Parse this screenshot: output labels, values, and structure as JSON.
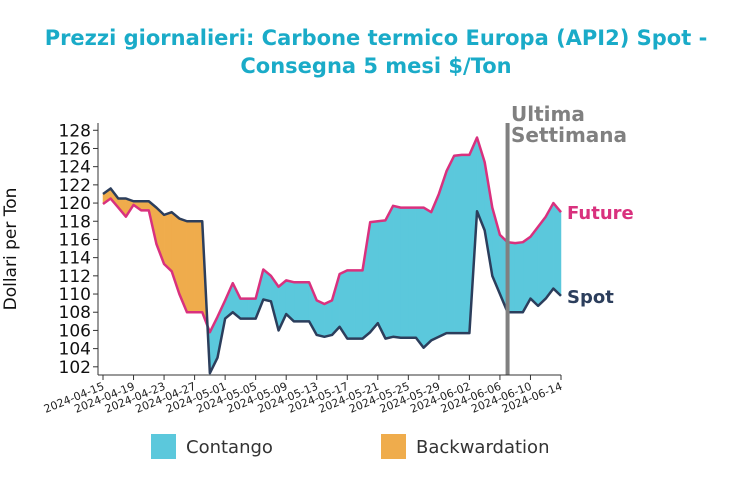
{
  "chart_data": {
    "type": "line",
    "title": "Prezzi giornalieri: Carbone termico Europa (API2) Spot - Consegna 5 mesi $/Ton",
    "y_label": "Dollari per Ton",
    "x": [
      "2024-04-15",
      "2024-04-16",
      "2024-04-17",
      "2024-04-18",
      "2024-04-19",
      "2024-04-20",
      "2024-04-21",
      "2024-04-22",
      "2024-04-23",
      "2024-04-24",
      "2024-04-25",
      "2024-04-26",
      "2024-04-27",
      "2024-04-28",
      "2024-04-29",
      "2024-04-30",
      "2024-05-01",
      "2024-05-02",
      "2024-05-03",
      "2024-05-04",
      "2024-05-05",
      "2024-05-06",
      "2024-05-07",
      "2024-05-08",
      "2024-05-09",
      "2024-05-10",
      "2024-05-11",
      "2024-05-12",
      "2024-05-13",
      "2024-05-14",
      "2024-05-15",
      "2024-05-16",
      "2024-05-17",
      "2024-05-18",
      "2024-05-19",
      "2024-05-20",
      "2024-05-21",
      "2024-05-22",
      "2024-05-23",
      "2024-05-24",
      "2024-05-25",
      "2024-05-26",
      "2024-05-27",
      "2024-05-28",
      "2024-05-29",
      "2024-05-30",
      "2024-05-31",
      "2024-06-01",
      "2024-06-02",
      "2024-06-03",
      "2024-06-04",
      "2024-06-05",
      "2024-06-06",
      "2024-06-07",
      "2024-06-08",
      "2024-06-09",
      "2024-06-10",
      "2024-06-11",
      "2024-06-12",
      "2024-06-13",
      "2024-06-14"
    ],
    "series": [
      {
        "name": "Future",
        "color": "#d9317e",
        "values": [
          119.9,
          120.5,
          119.5,
          118.5,
          119.8,
          119.2,
          119.2,
          115.5,
          113.3,
          112.5,
          110,
          108,
          108,
          108,
          105.8,
          107.5,
          109.3,
          111.2,
          109.5,
          109.5,
          109.5,
          112.7,
          112,
          110.8,
          111.5,
          111.3,
          111.3,
          111.3,
          109.3,
          108.9,
          109.3,
          112.2,
          112.6,
          112.6,
          112.6,
          117.9,
          118,
          118.1,
          119.7,
          119.5,
          119.5,
          119.5,
          119.5,
          119,
          121,
          123.5,
          125.2,
          125.3,
          125.3,
          127.2,
          124.5,
          119.5,
          116.5,
          115.7,
          115.6,
          115.7,
          116.3,
          117.4,
          118.5,
          120,
          119
        ]
      },
      {
        "name": "Spot",
        "color": "#2c3e5c",
        "values": [
          121,
          121.6,
          120.5,
          120.5,
          120.2,
          120.2,
          120.2,
          119.5,
          118.7,
          119,
          118.3,
          118,
          118,
          118,
          101.3,
          103,
          107.3,
          108,
          107.3,
          107.3,
          107.3,
          109.4,
          109.2,
          106,
          107.8,
          107,
          107,
          107,
          105.5,
          105.3,
          105.5,
          106.4,
          105.1,
          105.1,
          105.1,
          105.8,
          106.8,
          105.1,
          105.3,
          105.2,
          105.2,
          105.2,
          104.1,
          104.9,
          105.3,
          105.7,
          105.7,
          105.7,
          105.7,
          119.1,
          117,
          112,
          110,
          108,
          108,
          108,
          109.5,
          108.7,
          109.5,
          110.6,
          109.8
        ]
      }
    ],
    "areas": [
      {
        "name": "Contango",
        "color": "#5bc8dc"
      },
      {
        "name": "Backwardation",
        "color": "#efac4c"
      }
    ],
    "annotation": {
      "text": "Ultima Settimana",
      "x": "2024-06-07",
      "color": "#808080"
    },
    "xlim": [
      "2024-04-15",
      "2024-06-14"
    ],
    "xticks": [
      "2024-04-15",
      "2024-04-19",
      "2024-04-23",
      "2024-04-27",
      "2024-05-01",
      "2024-05-05",
      "2024-05-09",
      "2024-05-13",
      "2024-05-17",
      "2024-05-21",
      "2024-05-25",
      "2024-05-29",
      "2024-06-02",
      "2024-06-06",
      "2024-06-10",
      "2024-06-14"
    ],
    "ylim": [
      101.1,
      128.8
    ],
    "yticks": [
      102,
      104,
      106,
      108,
      110,
      112,
      114,
      116,
      118,
      120,
      122,
      124,
      126,
      128
    ],
    "grid": false
  }
}
